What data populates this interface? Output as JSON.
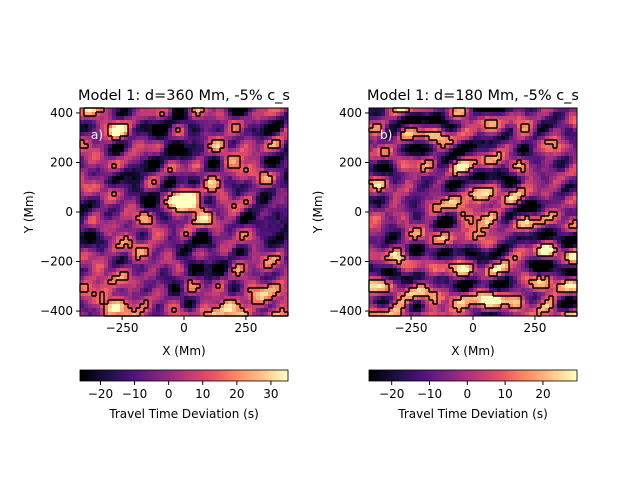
{
  "chart_data": [
    {
      "type": "heatmap",
      "title": "Model 1: d=360 Mm, -5% c_s",
      "panel_label": "a)",
      "xlabel": "X (Mm)",
      "ylabel": "Y (Mm)",
      "xlim": [
        -420,
        420
      ],
      "ylim": [
        -420,
        420
      ],
      "xticks": [
        -250,
        0,
        250
      ],
      "yticks": [
        -400,
        -200,
        0,
        200,
        400
      ],
      "colormap": "magma",
      "colorbar": {
        "label": "Travel Time Deviation (s)",
        "range": [
          -26,
          35
        ],
        "ticks": [
          -20,
          -10,
          0,
          10,
          20,
          30
        ]
      },
      "features": [
        {
          "name": "central-hotspot",
          "x": 0,
          "y": 20,
          "peak": 35
        },
        {
          "name": "southern-band",
          "y_range": [
            -420,
            -250
          ],
          "level": 15
        }
      ],
      "seed": 11
    },
    {
      "type": "heatmap",
      "title": "Model 1: d=180 Mm, -5% c_s",
      "panel_label": "b)",
      "xlabel": "X (Mm)",
      "ylabel": "Y (Mm)",
      "xlim": [
        -420,
        420
      ],
      "ylim": [
        -420,
        420
      ],
      "xticks": [
        -250,
        0,
        250
      ],
      "yticks": [
        -400,
        -200,
        0,
        200,
        400
      ],
      "colormap": "magma",
      "colorbar": {
        "label": "Travel Time Deviation (s)",
        "range": [
          -26,
          29
        ],
        "ticks": [
          -20,
          -10,
          0,
          10,
          20
        ]
      },
      "features": [
        {
          "name": "central-hotspot",
          "x": 20,
          "y": 0,
          "peak": 27
        },
        {
          "name": "southern-band",
          "y_range": [
            -420,
            -250
          ],
          "level": 13
        }
      ],
      "seed": 29
    }
  ]
}
